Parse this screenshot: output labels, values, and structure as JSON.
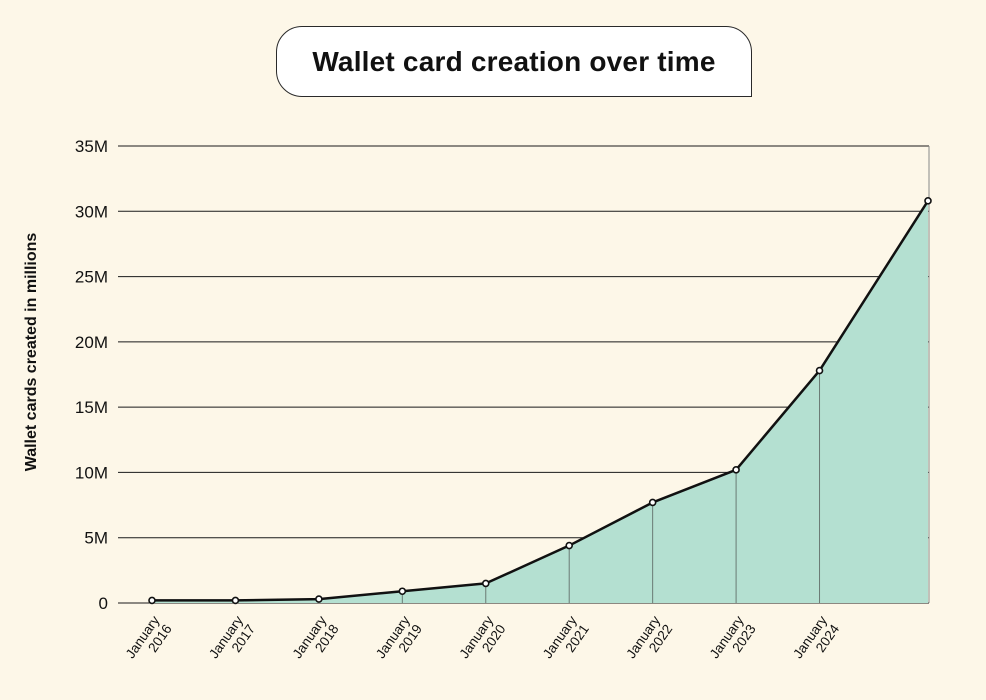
{
  "chart_data": {
    "type": "area",
    "title": "Wallet card creation over time",
    "xlabel": "",
    "ylabel": "Wallet cards created in millions",
    "ylim": [
      0,
      35
    ],
    "yticks": [
      {
        "value": 0,
        "label": "0"
      },
      {
        "value": 5,
        "label": "5M"
      },
      {
        "value": 10,
        "label": "10M"
      },
      {
        "value": 15,
        "label": "15M"
      },
      {
        "value": 20,
        "label": "20M"
      },
      {
        "value": 25,
        "label": "25M"
      },
      {
        "value": 30,
        "label": "30M"
      },
      {
        "value": 35,
        "label": "35M"
      }
    ],
    "categories": [
      {
        "line1": "January",
        "line2": "2016"
      },
      {
        "line1": "January",
        "line2": "2017"
      },
      {
        "line1": "January",
        "line2": "2018"
      },
      {
        "line1": "January",
        "line2": "2019"
      },
      {
        "line1": "January",
        "line2": "2020"
      },
      {
        "line1": "January",
        "line2": "2021"
      },
      {
        "line1": "January",
        "line2": "2022"
      },
      {
        "line1": "January",
        "line2": "2023"
      },
      {
        "line1": "January",
        "line2": "2024"
      }
    ],
    "x": [
      2016.0,
      2017.0,
      2018.0,
      2019.0,
      2020.0,
      2021.0,
      2022.0,
      2023.0,
      2024.0,
      2025.3
    ],
    "values": [
      0.2,
      0.2,
      0.3,
      0.9,
      1.5,
      4.4,
      7.7,
      10.2,
      17.8,
      30.8
    ],
    "fill_color": "#b4e0d1",
    "line_color": "#111111"
  }
}
